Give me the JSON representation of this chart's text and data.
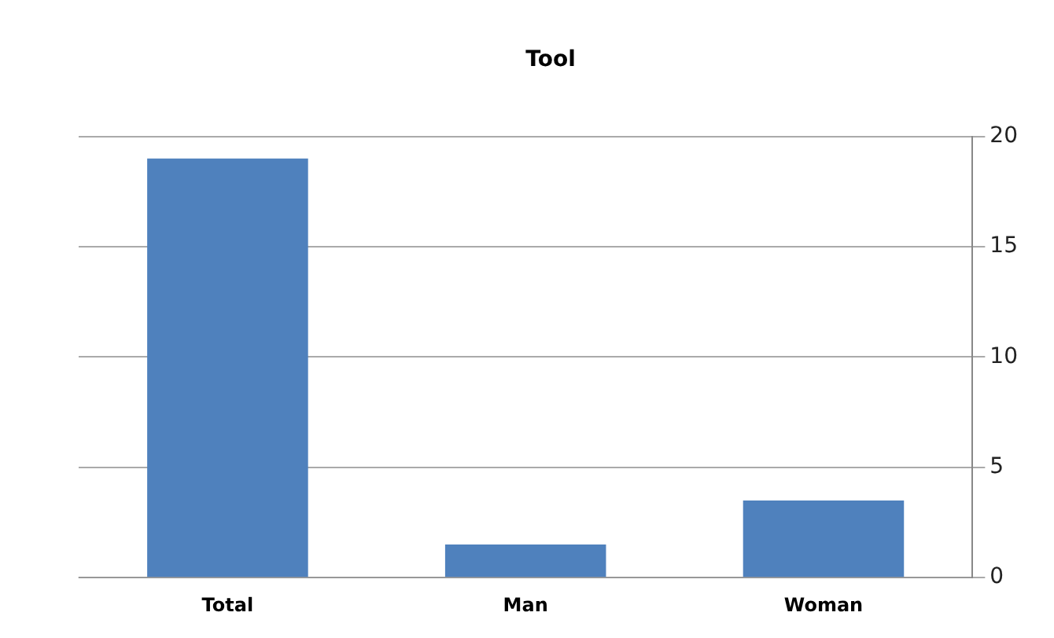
{
  "chart_data": {
    "type": "bar",
    "title": "Tool",
    "categories": [
      "Total",
      "Man",
      "Woman"
    ],
    "values": [
      19,
      1.5,
      3.5
    ],
    "color": "#4f81bd",
    "ylim": [
      0,
      20
    ],
    "yticks": [
      0,
      5,
      10,
      15,
      20
    ],
    "grid": "y",
    "legend": false
  }
}
